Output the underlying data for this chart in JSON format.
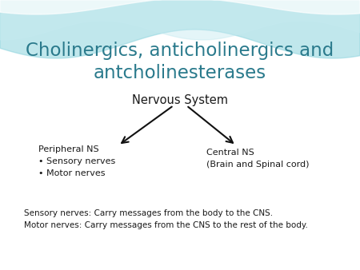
{
  "title_line1": "Cholinergics, anticholinergics and",
  "title_line2": "antcholinesterases",
  "title_color": "#2a7a8c",
  "nervous_system_label": "Nervous System",
  "peripheral_label": "Peripheral NS\n• Sensory nerves\n• Motor nerves",
  "central_label": "Central NS\n(Brain and Spinal cord)",
  "footnote_line1": "Sensory nerves: Carry messages from the body to the CNS.",
  "footnote_line2": "Motor nerves: Carry messages from the CNS to the rest of the body.",
  "text_color": "#1a1a1a",
  "footnote_fontsize": 7.5,
  "label_fontsize": 8.0,
  "ns_fontsize": 10.5,
  "title_fontsize": 16.5,
  "wave_color1": "#8dd4de",
  "wave_color2": "#c5eaf0",
  "arrow_color": "#111111"
}
